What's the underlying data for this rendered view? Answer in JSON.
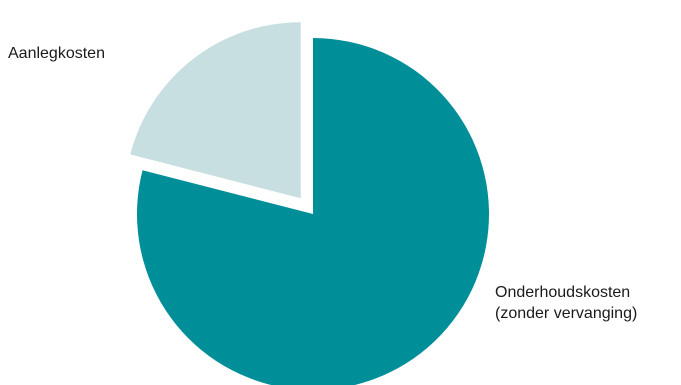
{
  "chart_data": {
    "type": "pie",
    "title": "",
    "start_angle_deg": 0,
    "direction": "clockwise",
    "slices": [
      {
        "label_lines": [
          "Onderhoudskosten",
          "(zonder vervanging)"
        ],
        "value": 79,
        "color": "#008f98",
        "exploded": false
      },
      {
        "label_lines": [
          "Aanlegkosten"
        ],
        "value": 21,
        "color": "#c8dfe2",
        "exploded": true
      }
    ],
    "legend": "none",
    "data_labels": "slice names placed outside the pie"
  }
}
